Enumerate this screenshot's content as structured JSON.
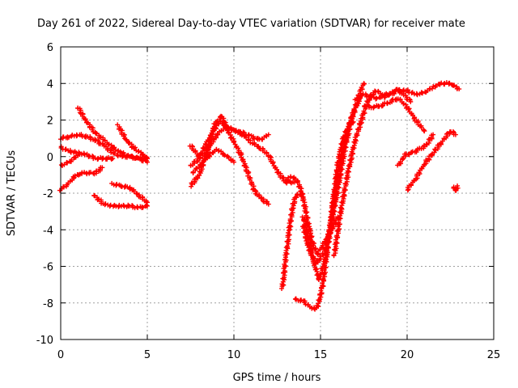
{
  "chart_data": {
    "type": "scatter",
    "title": "Day 261 of 2022, Sidereal Day-to-day VTEC variation (SDTVAR) for receiver mate",
    "xlabel": "GPS time / hours",
    "ylabel": "SDTVAR / TECUs",
    "xlim": [
      0,
      25
    ],
    "ylim": [
      -10,
      6
    ],
    "xticks": [
      0,
      5,
      10,
      15,
      20,
      25
    ],
    "yticks": [
      -10,
      -8,
      -6,
      -4,
      -2,
      0,
      2,
      4,
      6
    ],
    "grid": true,
    "legend": "none",
    "marker": "+",
    "color": "#ff0000",
    "series": [
      {
        "x": [
          0.0,
          0.5,
          1.0,
          1.5,
          2.0,
          2.5,
          3.0,
          3.5,
          4.0,
          4.5,
          5.0
        ],
        "y": [
          1.0,
          1.1,
          1.2,
          1.1,
          0.9,
          0.6,
          0.2,
          0.0,
          0.0,
          -0.1,
          -0.1
        ]
      },
      {
        "x": [
          0.0,
          0.5,
          1.0,
          1.5,
          2.0,
          2.5,
          3.0
        ],
        "y": [
          0.5,
          0.3,
          0.2,
          0.1,
          -0.1,
          -0.1,
          -0.1
        ]
      },
      {
        "x": [
          0.0,
          0.4,
          0.8,
          1.2,
          1.6,
          2.0,
          2.4
        ],
        "y": [
          -1.8,
          -1.5,
          -1.1,
          -0.9,
          -0.9,
          -0.9,
          -0.6
        ]
      },
      {
        "x": [
          0.0,
          0.5,
          1.0
        ],
        "y": [
          -0.5,
          -0.3,
          0.1
        ]
      },
      {
        "x": [
          1.0,
          1.5,
          2.0,
          2.5,
          3.0,
          3.5,
          4.0,
          4.5,
          5.0
        ],
        "y": [
          2.7,
          1.9,
          1.3,
          0.9,
          0.5,
          0.2,
          0.0,
          -0.1,
          -0.3
        ]
      },
      {
        "x": [
          3.3,
          3.8,
          4.3,
          4.8,
          5.0
        ],
        "y": [
          1.7,
          0.9,
          0.4,
          0.1,
          -0.1
        ]
      },
      {
        "x": [
          1.9,
          2.5,
          3.0,
          3.5,
          4.0,
          4.5,
          5.0
        ],
        "y": [
          -2.1,
          -2.6,
          -2.7,
          -2.7,
          -2.7,
          -2.8,
          -2.7
        ]
      },
      {
        "x": [
          3.0,
          3.5,
          4.0,
          4.5,
          5.0
        ],
        "y": [
          -1.5,
          -1.6,
          -1.7,
          -2.1,
          -2.5
        ]
      },
      {
        "x": [
          7.5,
          8.0,
          8.5,
          8.9,
          9.3,
          9.7,
          10.0,
          10.4,
          10.8,
          11.2,
          11.6,
          12.0
        ],
        "y": [
          -1.6,
          -1.0,
          0.4,
          1.8,
          2.2,
          1.3,
          0.8,
          0.1,
          -0.9,
          -1.9,
          -2.3,
          -2.6
        ]
      },
      {
        "x": [
          7.5,
          8.0,
          8.5,
          9.0,
          9.5,
          10.0,
          10.5,
          11.0,
          11.5,
          12.0,
          12.5,
          13.0,
          13.5
        ],
        "y": [
          -0.5,
          -0.1,
          0.4,
          1.2,
          1.6,
          1.5,
          1.2,
          0.8,
          0.5,
          0.1,
          -0.8,
          -1.4,
          -1.4
        ]
      },
      {
        "x": [
          7.5,
          8.0,
          8.4,
          8.8,
          9.2,
          9.6,
          10.0,
          10.5,
          11.0,
          11.5,
          12.0
        ],
        "y": [
          0.6,
          0.0,
          0.7,
          1.4,
          1.9,
          1.6,
          1.4,
          1.3,
          1.1,
          0.9,
          1.2
        ]
      },
      {
        "x": [
          7.6,
          8.0,
          8.5,
          9.0,
          9.5,
          10.0
        ],
        "y": [
          -0.9,
          -0.5,
          0.0,
          0.4,
          0.1,
          -0.3
        ]
      },
      {
        "x": [
          12.8,
          13.0,
          13.2,
          13.4,
          13.6,
          13.8,
          14.0
        ],
        "y": [
          -7.2,
          -5.5,
          -4.0,
          -2.7,
          -2.1,
          -2.1,
          -2.2
        ]
      },
      {
        "x": [
          13.0,
          13.3,
          13.6,
          13.9,
          14.2,
          14.5,
          14.8,
          15.1,
          15.4,
          15.7,
          16.0
        ],
        "y": [
          -1.3,
          -1.1,
          -1.2,
          -1.9,
          -3.2,
          -4.6,
          -5.3,
          -4.9,
          -4.4,
          -3.9,
          -3.3
        ]
      },
      {
        "x": [
          14.0,
          14.4,
          14.8,
          15.2,
          15.6,
          16.0,
          16.4,
          16.8,
          17.2,
          17.5
        ],
        "y": [
          -3.8,
          -5.3,
          -5.8,
          -5.2,
          -3.8,
          -1.8,
          0.4,
          2.1,
          3.3,
          4.0
        ]
      },
      {
        "x": [
          14.0,
          14.3,
          14.6,
          14.9,
          15.2,
          15.5,
          15.8,
          16.1,
          16.4,
          16.7,
          17.0,
          17.3
        ],
        "y": [
          -3.3,
          -4.3,
          -5.7,
          -6.7,
          -5.9,
          -4.4,
          -2.3,
          -0.5,
          0.9,
          1.9,
          2.6,
          3.2
        ]
      },
      {
        "x": [
          13.5,
          14.0,
          14.5,
          14.8,
          15.1,
          15.4,
          15.7,
          16.0,
          16.3,
          16.6,
          16.9
        ],
        "y": [
          -7.8,
          -7.9,
          -8.3,
          -8.3,
          -7.2,
          -5.1,
          -2.6,
          -0.4,
          1.0,
          1.6,
          1.9
        ]
      },
      {
        "x": [
          15.8,
          16.2,
          16.6,
          17.0,
          17.4,
          17.8,
          18.2,
          18.6,
          19.0,
          19.4,
          19.8,
          20.2
        ],
        "y": [
          -5.4,
          -2.8,
          -0.8,
          0.9,
          2.1,
          3.2,
          3.6,
          3.4,
          3.4,
          3.7,
          3.4,
          3.0
        ]
      },
      {
        "x": [
          17.0,
          17.5,
          18.0,
          18.5,
          19.0,
          19.5,
          20.0,
          20.5,
          21.0,
          21.5,
          22.0,
          22.5,
          23.0
        ],
        "y": [
          3.1,
          3.4,
          3.2,
          3.2,
          3.4,
          3.6,
          3.6,
          3.4,
          3.5,
          3.8,
          4.0,
          4.0,
          3.7
        ]
      },
      {
        "x": [
          17.5,
          18.0,
          18.5,
          19.0,
          19.5,
          20.0,
          20.5,
          21.0
        ],
        "y": [
          2.8,
          2.7,
          2.8,
          3.0,
          3.2,
          2.7,
          2.0,
          1.4
        ]
      },
      {
        "x": [
          19.5,
          19.9,
          20.3,
          20.7,
          21.1,
          21.5
        ],
        "y": [
          -0.5,
          0.1,
          0.2,
          0.4,
          0.6,
          1.2
        ]
      },
      {
        "x": [
          20.0,
          20.5,
          21.0,
          21.5,
          22.0,
          22.5,
          22.8
        ],
        "y": [
          -1.8,
          -1.2,
          -0.4,
          0.2,
          0.8,
          1.4,
          1.2
        ]
      },
      {
        "x": [
          22.7,
          22.8,
          22.9
        ],
        "y": [
          -1.7,
          -1.9,
          -1.6
        ]
      }
    ]
  }
}
